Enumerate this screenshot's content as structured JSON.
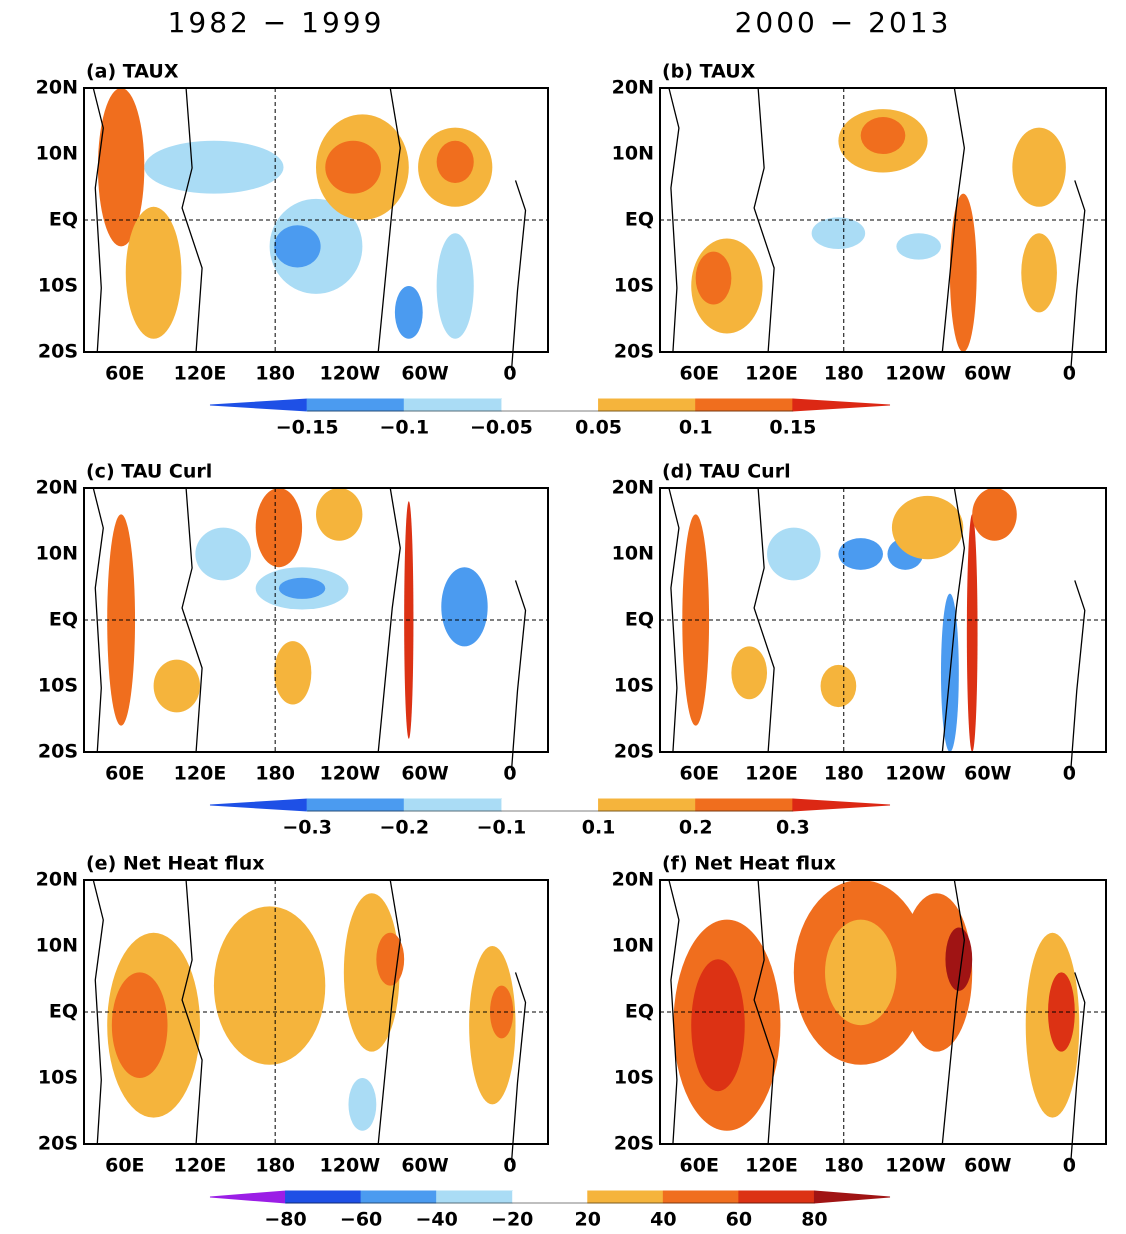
{
  "columns": [
    "1982 − 1999",
    "2000 − 2013"
  ],
  "rows": [
    {
      "panels": [
        "(a) TAUX",
        "(b) TAUX"
      ],
      "colorbar": {
        "labels": [
          "−0.15",
          "−0.1",
          "−0.05",
          "0.05",
          "0.1",
          "0.15"
        ],
        "colors": [
          "#1e50e6",
          "#4b9bf0",
          "#aadcf5",
          "#ffffff",
          "#f5b43c",
          "#f06e1e",
          "#dc2814"
        ]
      }
    },
    {
      "panels": [
        "(c) TAU Curl",
        "(d) TAU Curl"
      ],
      "colorbar": {
        "labels": [
          "−0.3",
          "−0.2",
          "−0.1",
          "0.1",
          "0.2",
          "0.3"
        ],
        "colors": [
          "#1e50e6",
          "#4b9bf0",
          "#aadcf5",
          "#ffffff",
          "#f5b43c",
          "#f06e1e",
          "#dc2814"
        ]
      }
    },
    {
      "panels": [
        "(e) Net Heat flux",
        "(f) Net Heat flux"
      ],
      "colorbar": {
        "labels": [
          "−80",
          "−60",
          "−40",
          "−20",
          "20",
          "40",
          "60",
          "80"
        ],
        "colors": [
          "#9b1ee6",
          "#1e50e6",
          "#4b9bf0",
          "#aadcf5",
          "#ffffff",
          "#f5b43c",
          "#f06e1e",
          "#dc3214",
          "#a01414"
        ]
      }
    }
  ],
  "lat_ticks": [
    "20N",
    "10N",
    "EQ",
    "10S",
    "20S"
  ],
  "lon_ticks": [
    "60E",
    "120E",
    "180",
    "120W",
    "60W",
    "0"
  ]
}
